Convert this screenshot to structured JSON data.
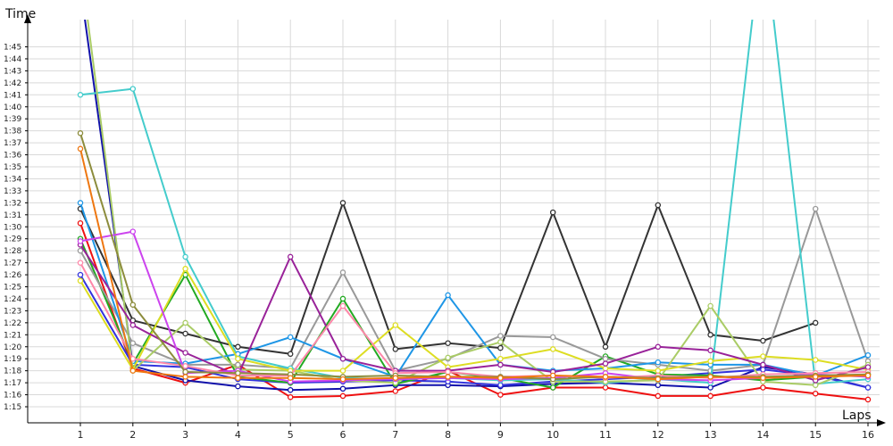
{
  "chart_data": {
    "type": "line",
    "title": "",
    "ylabel": "Time",
    "xlabel": "Laps",
    "x": [
      1,
      2,
      3,
      4,
      5,
      6,
      7,
      8,
      9,
      10,
      11,
      12,
      13,
      14,
      15,
      16
    ],
    "ylim": [
      74,
      107
    ],
    "grid": true,
    "yticks": [
      "1:15",
      "1:16",
      "1:17",
      "1:18",
      "1:19",
      "1:20",
      "1:21",
      "1:22",
      "1:23",
      "1:24",
      "1:25",
      "1:26",
      "1:27",
      "1:28",
      "1:29",
      "1:30",
      "1:31",
      "1:32",
      "1:33",
      "1:34",
      "1:35",
      "1:36",
      "1:37",
      "1:38",
      "1:39",
      "1:40",
      "1:41",
      "1:42",
      "1:43",
      "1:44",
      "1:45"
    ],
    "series": [
      {
        "color": "#ee1111",
        "values": [
          90.3,
          78.2,
          77.0,
          78.5,
          75.8,
          75.9,
          76.3,
          78.0,
          76.0,
          76.6,
          76.6,
          75.9,
          75.9,
          76.6,
          76.1,
          75.6
        ]
      },
      {
        "color": "#1111aa",
        "values": [
          110,
          78.4,
          77.2,
          76.7,
          76.4,
          76.5,
          76.8,
          76.8,
          76.7,
          76.9,
          77.0,
          76.8,
          76.6,
          78.3,
          77.7,
          76.6
        ]
      },
      {
        "color": "#3333dd",
        "values": [
          86.0,
          78.5,
          78.3,
          77.3,
          77.0,
          77.1,
          77.2,
          77.1,
          76.8,
          77.1,
          77.3,
          77.5,
          77.8,
          78.1,
          77.6,
          76.6
        ]
      },
      {
        "color": "#22aa22",
        "values": [
          89.0,
          78.6,
          86.0,
          77.5,
          77.0,
          84.0,
          76.9,
          77.9,
          77.4,
          76.6,
          79.2,
          77.7,
          77.6,
          77.2,
          77.5,
          77.7
        ]
      },
      {
        "color": "#333333",
        "values": [
          91.5,
          82.2,
          81.1,
          80.0,
          79.4,
          92.0,
          79.8,
          80.3,
          79.9,
          91.2,
          80.0,
          91.8,
          81.0,
          80.5,
          82.0,
          null
        ]
      },
      {
        "color": "#999999",
        "values": [
          88.0,
          80.3,
          78.5,
          78.5,
          78.2,
          86.2,
          78.0,
          79.0,
          80.9,
          80.8,
          79.0,
          78.5,
          78.0,
          78.5,
          91.5,
          78.8
        ]
      },
      {
        "color": "#44cccc",
        "values": [
          101.0,
          101.5,
          87.5,
          79.2,
          78.2,
          77.4,
          77.3,
          77.4,
          77.2,
          77.3,
          77.0,
          77.3,
          77.0,
          115,
          76.9,
          77.3
        ]
      },
      {
        "color": "#1e96e6",
        "values": [
          92.0,
          78.8,
          78.6,
          79.4,
          80.8,
          79.0,
          77.5,
          84.3,
          78.5,
          78.0,
          78.2,
          78.7,
          78.5,
          78.5,
          77.6,
          79.3
        ]
      },
      {
        "color": "#aacc66",
        "values": [
          112,
          78.0,
          82.0,
          78.1,
          78.0,
          77.2,
          77.0,
          79.1,
          80.4,
          77.1,
          77.1,
          77.2,
          83.4,
          77.1,
          76.8,
          78.5
        ]
      },
      {
        "color": "#dddd22",
        "values": [
          85.5,
          78.1,
          86.5,
          79.0,
          78.0,
          78.0,
          81.8,
          78.3,
          79.0,
          79.8,
          78.2,
          78.0,
          78.8,
          79.2,
          78.9,
          78.1
        ]
      },
      {
        "color": "#992299",
        "values": [
          88.5,
          81.8,
          79.5,
          77.6,
          87.5,
          79.0,
          78.0,
          78.0,
          78.5,
          77.9,
          78.6,
          80.0,
          79.7,
          78.5,
          77.2,
          78.3
        ]
      },
      {
        "color": "#cc44ee",
        "values": [
          88.8,
          89.6,
          77.8,
          78.0,
          77.1,
          77.2,
          77.3,
          77.4,
          77.3,
          77.4,
          77.8,
          77.3,
          77.2,
          77.4,
          77.7,
          77.5
        ]
      },
      {
        "color": "#ff88aa",
        "values": [
          87.0,
          79.0,
          78.4,
          77.6,
          77.6,
          83.4,
          77.8,
          77.9,
          77.5,
          77.6,
          77.4,
          77.6,
          77.4,
          77.7,
          77.8,
          77.9
        ]
      },
      {
        "color": "#8c8c3c",
        "values": [
          97.8,
          83.5,
          77.9,
          77.8,
          77.7,
          77.5,
          77.6,
          77.5,
          77.5,
          77.3,
          77.5,
          77.4,
          77.5,
          77.5,
          77.6,
          77.7
        ]
      },
      {
        "color": "#ee7711",
        "values": [
          96.5,
          78.0,
          77.5,
          77.4,
          77.4,
          77.3,
          77.4,
          77.5,
          77.4,
          77.6,
          77.5,
          77.3,
          77.5,
          77.4,
          77.5,
          77.6
        ]
      }
    ]
  }
}
